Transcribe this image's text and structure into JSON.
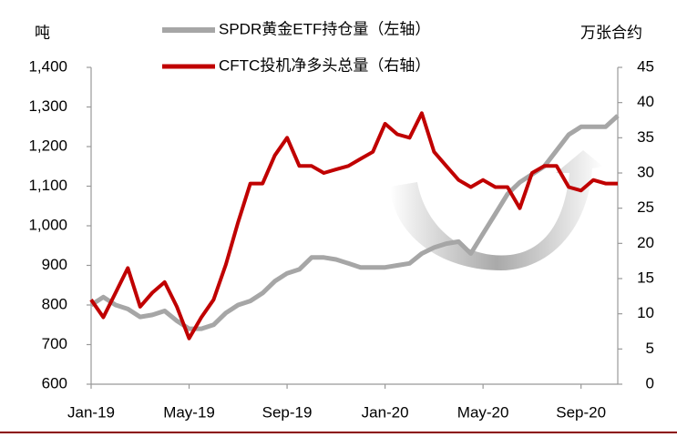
{
  "chart_data": {
    "type": "line",
    "y_label": "吨",
    "y2_label": "万张合约",
    "categories": [
      "Jan-19",
      null,
      null,
      null,
      null,
      null,
      null,
      null,
      "May-19",
      null,
      null,
      null,
      null,
      null,
      null,
      null,
      "Sep-19",
      null,
      null,
      null,
      null,
      null,
      null,
      null,
      "Jan-20",
      null,
      null,
      null,
      null,
      null,
      null,
      null,
      "May-20",
      null,
      null,
      null,
      null,
      null,
      null,
      null,
      "Sep-20",
      null,
      null,
      null
    ],
    "ylim": [
      600,
      1400
    ],
    "yticks": [
      600,
      700,
      800,
      900,
      {
        "value": 1000,
        "label": "1,000"
      },
      {
        "value": 1100,
        "label": "1,100"
      },
      {
        "value": 1200,
        "label": "1,200"
      },
      {
        "value": 1300,
        "label": "1,300"
      },
      {
        "value": 1400,
        "label": "1,400"
      }
    ],
    "y2lim": [
      0,
      45
    ],
    "y2ticks": [
      0,
      5,
      10,
      15,
      20,
      25,
      30,
      35,
      40,
      45
    ],
    "series": [
      {
        "name": "SPDR黄金ETF持仓量（左轴）",
        "color": "#a6a6a6",
        "axis": "y",
        "values": [
          800,
          820,
          800,
          790,
          770,
          775,
          785,
          760,
          740,
          740,
          750,
          780,
          800,
          810,
          830,
          860,
          880,
          890,
          920,
          920,
          915,
          905,
          895,
          895,
          895,
          900,
          905,
          930,
          945,
          955,
          960,
          930,
          980,
          1030,
          1080,
          1110,
          1130,
          1150,
          1190,
          1230,
          1250,
          1250,
          1250,
          1278
        ]
      },
      {
        "name": "CFTC投机净多头总量（右轴）",
        "color": "#c00000",
        "axis": "y2",
        "values": [
          12,
          9.5,
          13,
          16.5,
          11,
          13,
          14.5,
          11,
          6.5,
          9.5,
          12,
          17,
          23,
          28.5,
          28.5,
          32.5,
          35,
          31,
          31,
          30,
          30.5,
          31,
          32,
          33,
          37,
          35.5,
          35,
          38.5,
          33,
          31,
          29,
          28,
          29,
          28,
          28,
          25,
          30,
          31,
          31,
          28,
          27.5,
          29,
          28.5,
          28.5
        ]
      }
    ]
  }
}
